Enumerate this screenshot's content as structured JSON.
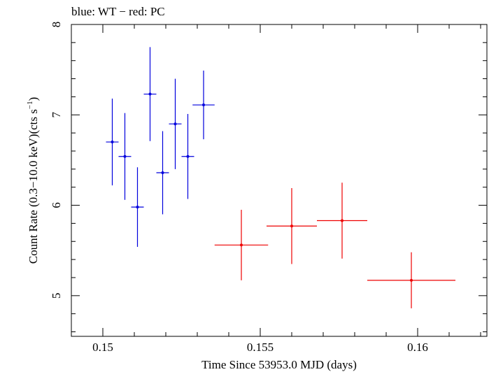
{
  "chart_data": {
    "type": "scatter",
    "title": "blue: WT − red: PC",
    "xlabel": "Time Since 53953.0 MJD (days)",
    "ylabel_main": "Count Rate (0.3−10.0 keV)(cts s",
    "ylabel_sup": "−1",
    "ylabel_end": ")",
    "xlim": [
      0.149,
      0.1622
    ],
    "ylim": [
      4.55,
      8.0
    ],
    "xticks": [
      0.15,
      0.155,
      0.16
    ],
    "xtick_labels": [
      "0.15",
      "0.155",
      "0.16"
    ],
    "yticks": [
      5,
      6,
      7,
      8
    ],
    "ytick_labels": [
      "5",
      "6",
      "7",
      "8"
    ],
    "grid": false,
    "series": [
      {
        "color": "#0000dd",
        "points": [
          {
            "x": 0.1503,
            "y": 6.7,
            "xerr": 0.0002,
            "yerr": 0.48
          },
          {
            "x": 0.1507,
            "y": 6.54,
            "xerr": 0.0002,
            "yerr": 0.48
          },
          {
            "x": 0.1511,
            "y": 5.98,
            "xerr": 0.0002,
            "yerr": 0.44
          },
          {
            "x": 0.1515,
            "y": 7.23,
            "xerr": 0.0002,
            "yerr": 0.52
          },
          {
            "x": 0.1519,
            "y": 6.36,
            "xerr": 0.0002,
            "yerr": 0.46
          },
          {
            "x": 0.1523,
            "y": 6.9,
            "xerr": 0.0002,
            "yerr": 0.5
          },
          {
            "x": 0.1527,
            "y": 6.54,
            "xerr": 0.0002,
            "yerr": 0.47
          },
          {
            "x": 0.1532,
            "y": 7.11,
            "xerr": 0.00035,
            "yerr": 0.38
          }
        ]
      },
      {
        "color": "#ee0000",
        "points": [
          {
            "x": 0.1544,
            "y": 5.56,
            "xerr": 0.00085,
            "yerr": 0.39
          },
          {
            "x": 0.156,
            "y": 5.77,
            "xerr": 0.0008,
            "yerr": 0.42
          },
          {
            "x": 0.1576,
            "y": 5.83,
            "xerr": 0.0008,
            "yerr": 0.42
          },
          {
            "x": 0.1598,
            "y": 5.17,
            "xerr": 0.0014,
            "yerr": 0.31
          }
        ]
      }
    ]
  }
}
